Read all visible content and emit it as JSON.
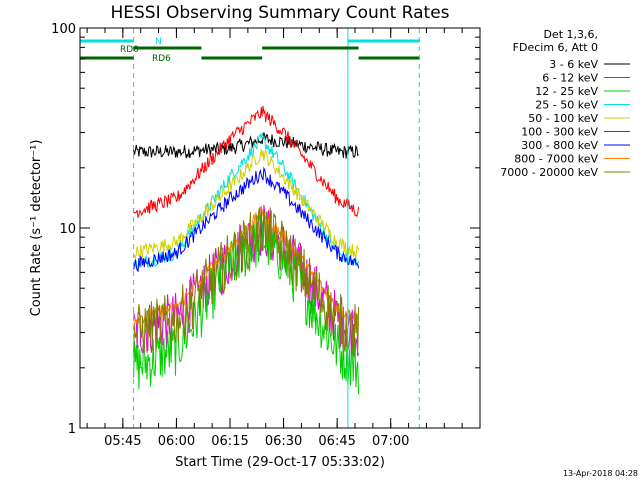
{
  "chart_data": {
    "type": "line",
    "title": "HESSI Observing Summary Count Rates",
    "xlabel": "Start Time (29-Oct-17 05:33:02)",
    "ylabel": "Count Rate (s⁻¹ detector⁻¹)",
    "yscale": "log",
    "ylim": [
      1,
      100
    ],
    "xlim_minutes_after_0533": [
      0,
      112
    ],
    "x_ticks": [
      "05:45",
      "06:00",
      "06:15",
      "06:30",
      "06:45",
      "07:00"
    ],
    "y_ticks": [
      "1",
      "10",
      "100"
    ],
    "legend_header": [
      "Det 1,3,6,",
      "FDecim 6, Att 0"
    ],
    "legend_position": "right",
    "series": [
      {
        "name": "3 - 6 keV",
        "color": "#000000",
        "x": [
          "05:48",
          "06:00",
          "06:15",
          "06:22",
          "06:24",
          "06:30",
          "06:45",
          "06:51"
        ],
        "values": [
          24,
          24,
          25,
          27,
          28,
          27,
          24,
          24
        ]
      },
      {
        "name": "6 - 12 keV",
        "color": "#e000e0",
        "x": [
          "05:48",
          "06:00",
          "06:15",
          "06:24",
          "06:30",
          "06:45",
          "06:51"
        ],
        "values": [
          3.0,
          3.5,
          7,
          10,
          8,
          3.5,
          3.0
        ]
      },
      {
        "name": "12 - 25 keV",
        "color": "#00d000",
        "x": [
          "05:48",
          "06:00",
          "06:15",
          "06:24",
          "06:30",
          "06:45",
          "06:51"
        ],
        "values": [
          2.0,
          2.5,
          6.5,
          9,
          7,
          2.5,
          2.0
        ]
      },
      {
        "name": "25 - 50 keV",
        "color": "#00e0e0",
        "x": [
          "05:48",
          "06:00",
          "06:15",
          "06:24",
          "06:30",
          "06:45",
          "06:51"
        ],
        "values": [
          6.5,
          7.5,
          18,
          28,
          20,
          7.5,
          6.5
        ]
      },
      {
        "name": "50 - 100 keV",
        "color": "#d0d000",
        "x": [
          "05:48",
          "06:00",
          "06:15",
          "06:24",
          "06:30",
          "06:45",
          "06:51"
        ],
        "values": [
          7.5,
          8.5,
          16,
          24,
          18,
          8.5,
          7.5
        ]
      },
      {
        "name": "100 - 300 keV",
        "color": "#ff0000",
        "x": [
          "05:48",
          "06:00",
          "06:15",
          "06:24",
          "06:30",
          "06:45",
          "06:51"
        ],
        "values": [
          12,
          14,
          28,
          38,
          30,
          14,
          12
        ]
      },
      {
        "name": "300 - 800 keV",
        "color": "#0000ff",
        "x": [
          "05:48",
          "06:00",
          "06:15",
          "06:24",
          "06:30",
          "06:45",
          "06:51"
        ],
        "values": [
          6.5,
          7.5,
          14,
          19,
          15,
          7.5,
          6.5
        ]
      },
      {
        "name": "800 - 7000 keV",
        "color": "#ff8000",
        "x": [
          "05:48",
          "06:00",
          "06:15",
          "06:24",
          "06:30",
          "06:45",
          "06:51"
        ],
        "values": [
          3.5,
          4.0,
          8,
          12,
          9,
          4.0,
          3.5
        ]
      },
      {
        "name": "7000 - 20000 keV",
        "color": "#808000",
        "x": [
          "05:48",
          "06:00",
          "06:15",
          "06:24",
          "06:30",
          "06:45",
          "06:51"
        ],
        "values": [
          3.0,
          3.5,
          7,
          10,
          8,
          3.5,
          3.0
        ]
      }
    ],
    "annotations": {
      "flag_bars": [
        {
          "label": "N",
          "color": "#00e0e0"
        },
        {
          "label": "RD0",
          "color": "#006400"
        },
        {
          "label": "RD6",
          "color": "#006400"
        }
      ],
      "vertical_lines": [
        {
          "x": "05:33",
          "style": "solid",
          "color": "#00e0e0"
        },
        {
          "x": "05:48",
          "style": "dashed",
          "color": "#00e0e0"
        },
        {
          "x": "06:48",
          "style": "solid",
          "color": "#00e0e0"
        },
        {
          "x": "07:08",
          "style": "dashed",
          "color": "#00e0e0"
        }
      ]
    }
  },
  "footer": {
    "timestamp": "13-Apr-2018 04:28"
  }
}
